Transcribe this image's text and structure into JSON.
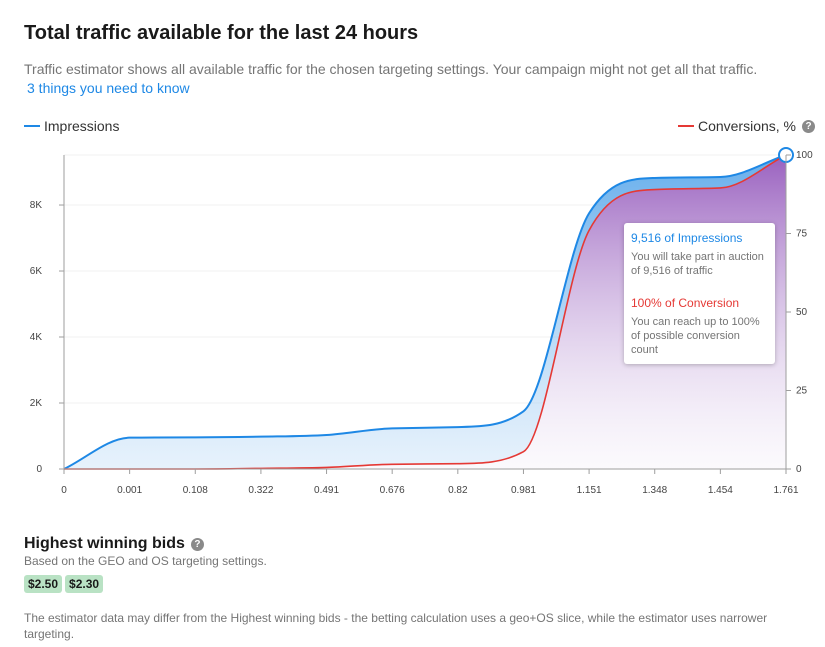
{
  "header": {
    "title": "Total traffic available for the last 24 hours",
    "subtitle": "Traffic estimator shows all available traffic for the chosen targeting settings. Your campaign might not get all that traffic.",
    "link": "3 things you need to know"
  },
  "legend": {
    "left": "Impressions",
    "right": "Conversions, %",
    "colors": {
      "impressions": "#1e88e5",
      "conversions": "#e53935"
    }
  },
  "chart_data": {
    "type": "area",
    "x_ticks": [
      "0",
      "0.001",
      "0.108",
      "0.322",
      "0.491",
      "0.676",
      "0.82",
      "0.981",
      "1.151",
      "1.348",
      "1.454",
      "1.761"
    ],
    "y_left_ticks": [
      "0",
      "2K",
      "4K",
      "6K",
      "8K"
    ],
    "y_right_ticks": [
      "0",
      "25",
      "50",
      "75",
      "100"
    ],
    "ylim_left": [
      0,
      9516
    ],
    "ylim_right": [
      0,
      100
    ],
    "series": [
      {
        "name": "Impressions",
        "color": "#1e88e5",
        "values": [
          0,
          950,
          960,
          980,
          1030,
          1230,
          1270,
          1750,
          7750,
          8820,
          8850,
          9516
        ]
      },
      {
        "name": "Conversions, %",
        "color": "#e53935",
        "values": [
          0,
          0,
          0,
          0.2,
          0.5,
          1.5,
          1.7,
          5.5,
          76,
          89,
          89.5,
          100
        ]
      }
    ]
  },
  "tooltip": {
    "impressions_head": "9,516 of Impressions",
    "impressions_body": "You will take part in auction of 9,516 of traffic",
    "conversion_head": "100% of Conversion",
    "conversion_body": "You can reach up to 100% of possible conversion count"
  },
  "bids": {
    "title": "Highest winning bids",
    "subtitle": "Based on the GEO and OS targeting settings.",
    "chips": [
      "$2.50",
      "$2.30"
    ]
  },
  "note": "The estimator data may differ from the Highest winning bids - the betting calculation uses a geo+OS slice, while the estimator uses narrower targeting."
}
